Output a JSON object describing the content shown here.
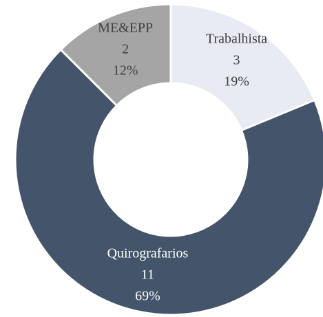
{
  "chart_data": {
    "type": "donut",
    "categories": [
      "Trabalhista",
      "Quirografarios",
      "ME&EPP"
    ],
    "values": [
      3,
      11,
      2
    ],
    "percent_labels": [
      "19%",
      "69%",
      "12%"
    ],
    "colors": [
      "#e8eaf4",
      "#44546a",
      "#a5a5a5"
    ]
  }
}
